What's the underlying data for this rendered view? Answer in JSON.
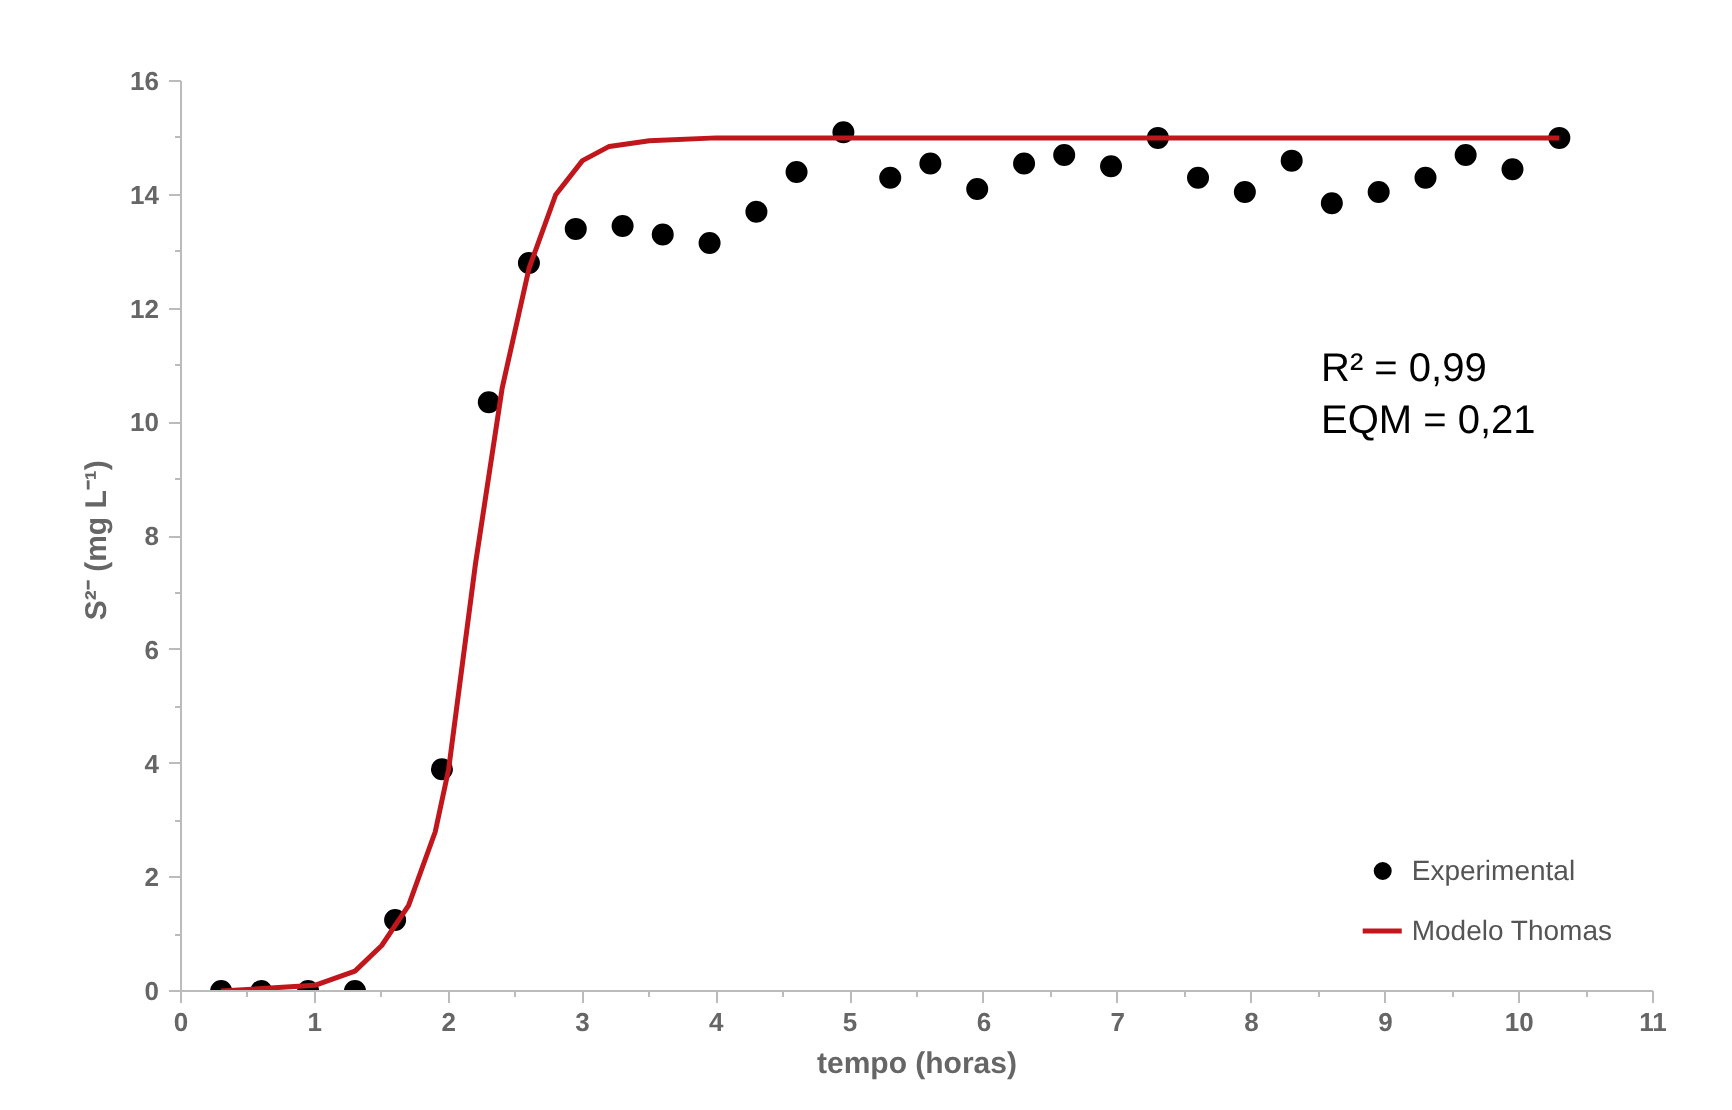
{
  "chart_data": {
    "type": "scatter",
    "xlabel": "tempo (horas)",
    "ylabel": "S²⁻ (mg  L⁻¹)",
    "xlim": [
      0,
      11
    ],
    "xticks": [
      0,
      1,
      2,
      3,
      4,
      5,
      6,
      7,
      8,
      9,
      10,
      11
    ],
    "ylim": [
      0,
      16
    ],
    "yticks": [
      0,
      2,
      4,
      6,
      8,
      10,
      12,
      14,
      16
    ],
    "grid": false,
    "legend": "bottom right",
    "annotations": [
      "R² = 0,99",
      "EQM = 0,21"
    ],
    "series": [
      {
        "name": "Experimental",
        "marker": "circle",
        "color": "#000000",
        "x": [
          0.3,
          0.6,
          0.95,
          1.3,
          1.6,
          1.95,
          2.3,
          2.6,
          2.95,
          3.3,
          3.6,
          3.95,
          4.3,
          4.6,
          4.95,
          5.3,
          5.6,
          5.95,
          6.3,
          6.6,
          6.95,
          7.3,
          7.6,
          7.95,
          8.3,
          8.6,
          8.95,
          9.3,
          9.6,
          9.95,
          10.3
        ],
        "values": [
          0,
          0,
          0,
          0,
          1.25,
          3.9,
          10.35,
          12.8,
          13.4,
          13.45,
          13.3,
          13.15,
          13.7,
          14.4,
          15.1,
          14.3,
          14.55,
          14.1,
          14.55,
          14.7,
          14.5,
          15.0,
          14.3,
          14.05,
          14.6,
          13.85,
          14.05,
          14.3,
          14.7,
          14.45,
          15.0
        ]
      },
      {
        "name": "Modelo Thomas",
        "type": "line",
        "line_style": "solid",
        "color": "#c0161c",
        "x": [
          0.3,
          1.0,
          1.3,
          1.5,
          1.7,
          1.9,
          2.0,
          2.2,
          2.4,
          2.6,
          2.8,
          3.0,
          3.2,
          3.5,
          4.0,
          10.3
        ],
        "values": [
          0,
          0.1,
          0.35,
          0.8,
          1.5,
          2.8,
          3.9,
          7.5,
          10.6,
          12.7,
          14.0,
          14.6,
          14.85,
          14.95,
          15.0,
          15.0
        ]
      }
    ]
  }
}
